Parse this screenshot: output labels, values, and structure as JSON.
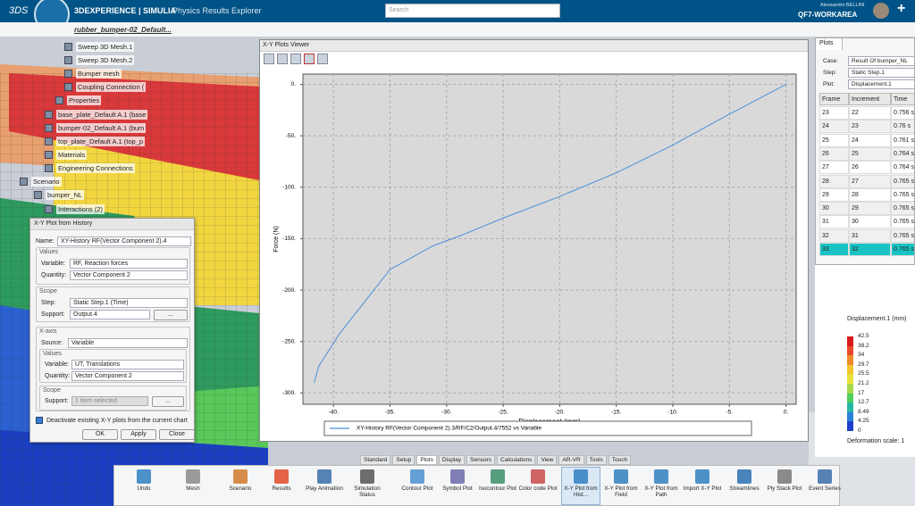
{
  "header": {
    "brand": "3DEXPERIENCE | SIMULIA",
    "app": "Physics Results Explorer",
    "search": "Search",
    "user": "Alessandro BELLINI",
    "workspace": "QF7-WORKAREA",
    "tab": "rubber_bumper-02_Default..."
  },
  "tree": [
    "Sweep 3D Mesh.1",
    "Sweep 3D Mesh.2",
    "Bumper mesh",
    "Coupling Connection (",
    "Properties",
    "base_plate_Default A.1 (base",
    "bumper-02_Default A.1 (bum",
    "top_plate_Default A.1 (top_p",
    "Materials",
    "Engineering Connections",
    "Scenario",
    "bumper_NL",
    "Interactions (2)"
  ],
  "dialog": {
    "title": "X-Y Plot from History",
    "name_label": "Name:",
    "name": "XY-History RF(Vector Component 2).4",
    "values_group": "Values",
    "variable_label": "Variable:",
    "variable": "RF, Reaction forces",
    "quantity_label": "Quantity:",
    "quantity": "Vector Component 2",
    "scope_group": "Scope",
    "step_label": "Step:",
    "step": "Static Step.1 (Time)",
    "support_label": "Support:",
    "support": "Output.4",
    "browse": "...",
    "xaxis_group": "X-axis",
    "source_label": "Source:",
    "source": "Variable",
    "x_values_group": "Values",
    "x_variable_label": "Variable:",
    "x_variable": "UT, Translations",
    "x_quantity_label": "Quantity:",
    "x_quantity": "Vector Component 2",
    "x_scope_group": "Scope",
    "x_support_label": "Support:",
    "x_support": "1 item selected",
    "x_browse": "...",
    "checkbox": "Deactivate existing X-Y plots from the current chart",
    "buttons": [
      "OK",
      "Apply",
      "Close"
    ]
  },
  "plots_panel": {
    "title": "Plots",
    "case_label": "Case:",
    "case": "Result Of bumper_NL",
    "step_label": "Step:",
    "step": "Static Step.1",
    "plot_label": "Plot:",
    "plot": "Displacement.1",
    "columns": [
      "Frame",
      "Increment",
      "Time"
    ],
    "rows": [
      [
        "23",
        "22",
        "0.756 s"
      ],
      [
        "24",
        "23",
        "0.76 s"
      ],
      [
        "25",
        "24",
        "0.761 s"
      ],
      [
        "26",
        "25",
        "0.764 s"
      ],
      [
        "27",
        "26",
        "0.764 s"
      ],
      [
        "28",
        "27",
        "0.765 s"
      ],
      [
        "29",
        "28",
        "0.765 s"
      ],
      [
        "30",
        "29",
        "0.765 s"
      ],
      [
        "31",
        "30",
        "0.765 s"
      ],
      [
        "32",
        "31",
        "0.765 s"
      ],
      [
        "33",
        "32",
        "0.765 s"
      ]
    ],
    "selected_row": 10
  },
  "contour_legend": {
    "title": "Displacement.1 (mm)",
    "labels": [
      "42.5",
      "38.2",
      "34",
      "29.7",
      "25.5",
      "21.2",
      "17",
      "12.7",
      "8.49",
      "4.25",
      "0"
    ],
    "deformation": "Deformation scale: 1"
  },
  "toolbar": {
    "tabs": [
      "Standard",
      "Setup",
      "Plots",
      "Display",
      "Sensors",
      "Calculations",
      "View",
      "AR-VR",
      "Tools",
      "Touch"
    ],
    "active_tab": 2,
    "buttons": [
      "Undo",
      "Mesh",
      "Scenario",
      "Results",
      "Play Animation",
      "Simulation Status",
      "Contour Plot",
      "Symbol Plot",
      "Isocontour Plot",
      "Color code Plot",
      "X-Y Plot from Hist...",
      "X-Y Plot from Field",
      "X-Y Plot from Path",
      "Import X-Y Plot",
      "Streamlines",
      "Ply Stack Plot",
      "Event Series"
    ],
    "active_button": 10
  },
  "chart_data": {
    "type": "line",
    "title": "X-Y Plots Viewer",
    "x_label": "Displacement (mm)",
    "y_label": "Force (N)",
    "x": [
      -41.7,
      -41.3,
      -39.5,
      -35,
      -31.2,
      -28.3,
      -25,
      -20,
      -15,
      -10,
      -5,
      0
    ],
    "series": [
      {
        "name": "XY-History RF(Vector Component 2).3/RF/C2/Output.4/7552 vs Variable",
        "color": "#4a90d9",
        "values": [
          -290,
          -274,
          -243,
          -180,
          -157,
          -145,
          -130,
          -109,
          -86,
          -59,
          -29,
          0
        ]
      }
    ],
    "xlim": [
      -42.7,
      0.9
    ],
    "ylim": [
      -311,
      10
    ],
    "xticks": [
      {
        "value": -40,
        "label": "-40."
      },
      {
        "value": -35,
        "label": "-35."
      },
      {
        "value": -30,
        "label": "-30."
      },
      {
        "value": -25,
        "label": "-25."
      },
      {
        "value": -20,
        "label": "-20."
      },
      {
        "value": -15,
        "label": "-15."
      },
      {
        "value": -10,
        "label": "-10."
      },
      {
        "value": -5,
        "label": "-5."
      },
      {
        "value": 0,
        "label": "0."
      }
    ],
    "yticks": [
      {
        "value": 0,
        "label": "0."
      },
      {
        "value": -50,
        "label": "-50."
      },
      {
        "value": -100,
        "label": "-100."
      },
      {
        "value": -150,
        "label": "-150."
      },
      {
        "value": -200,
        "label": "-200."
      },
      {
        "value": -250,
        "label": "-250."
      },
      {
        "value": -300,
        "label": "-300."
      }
    ],
    "grid": true
  }
}
